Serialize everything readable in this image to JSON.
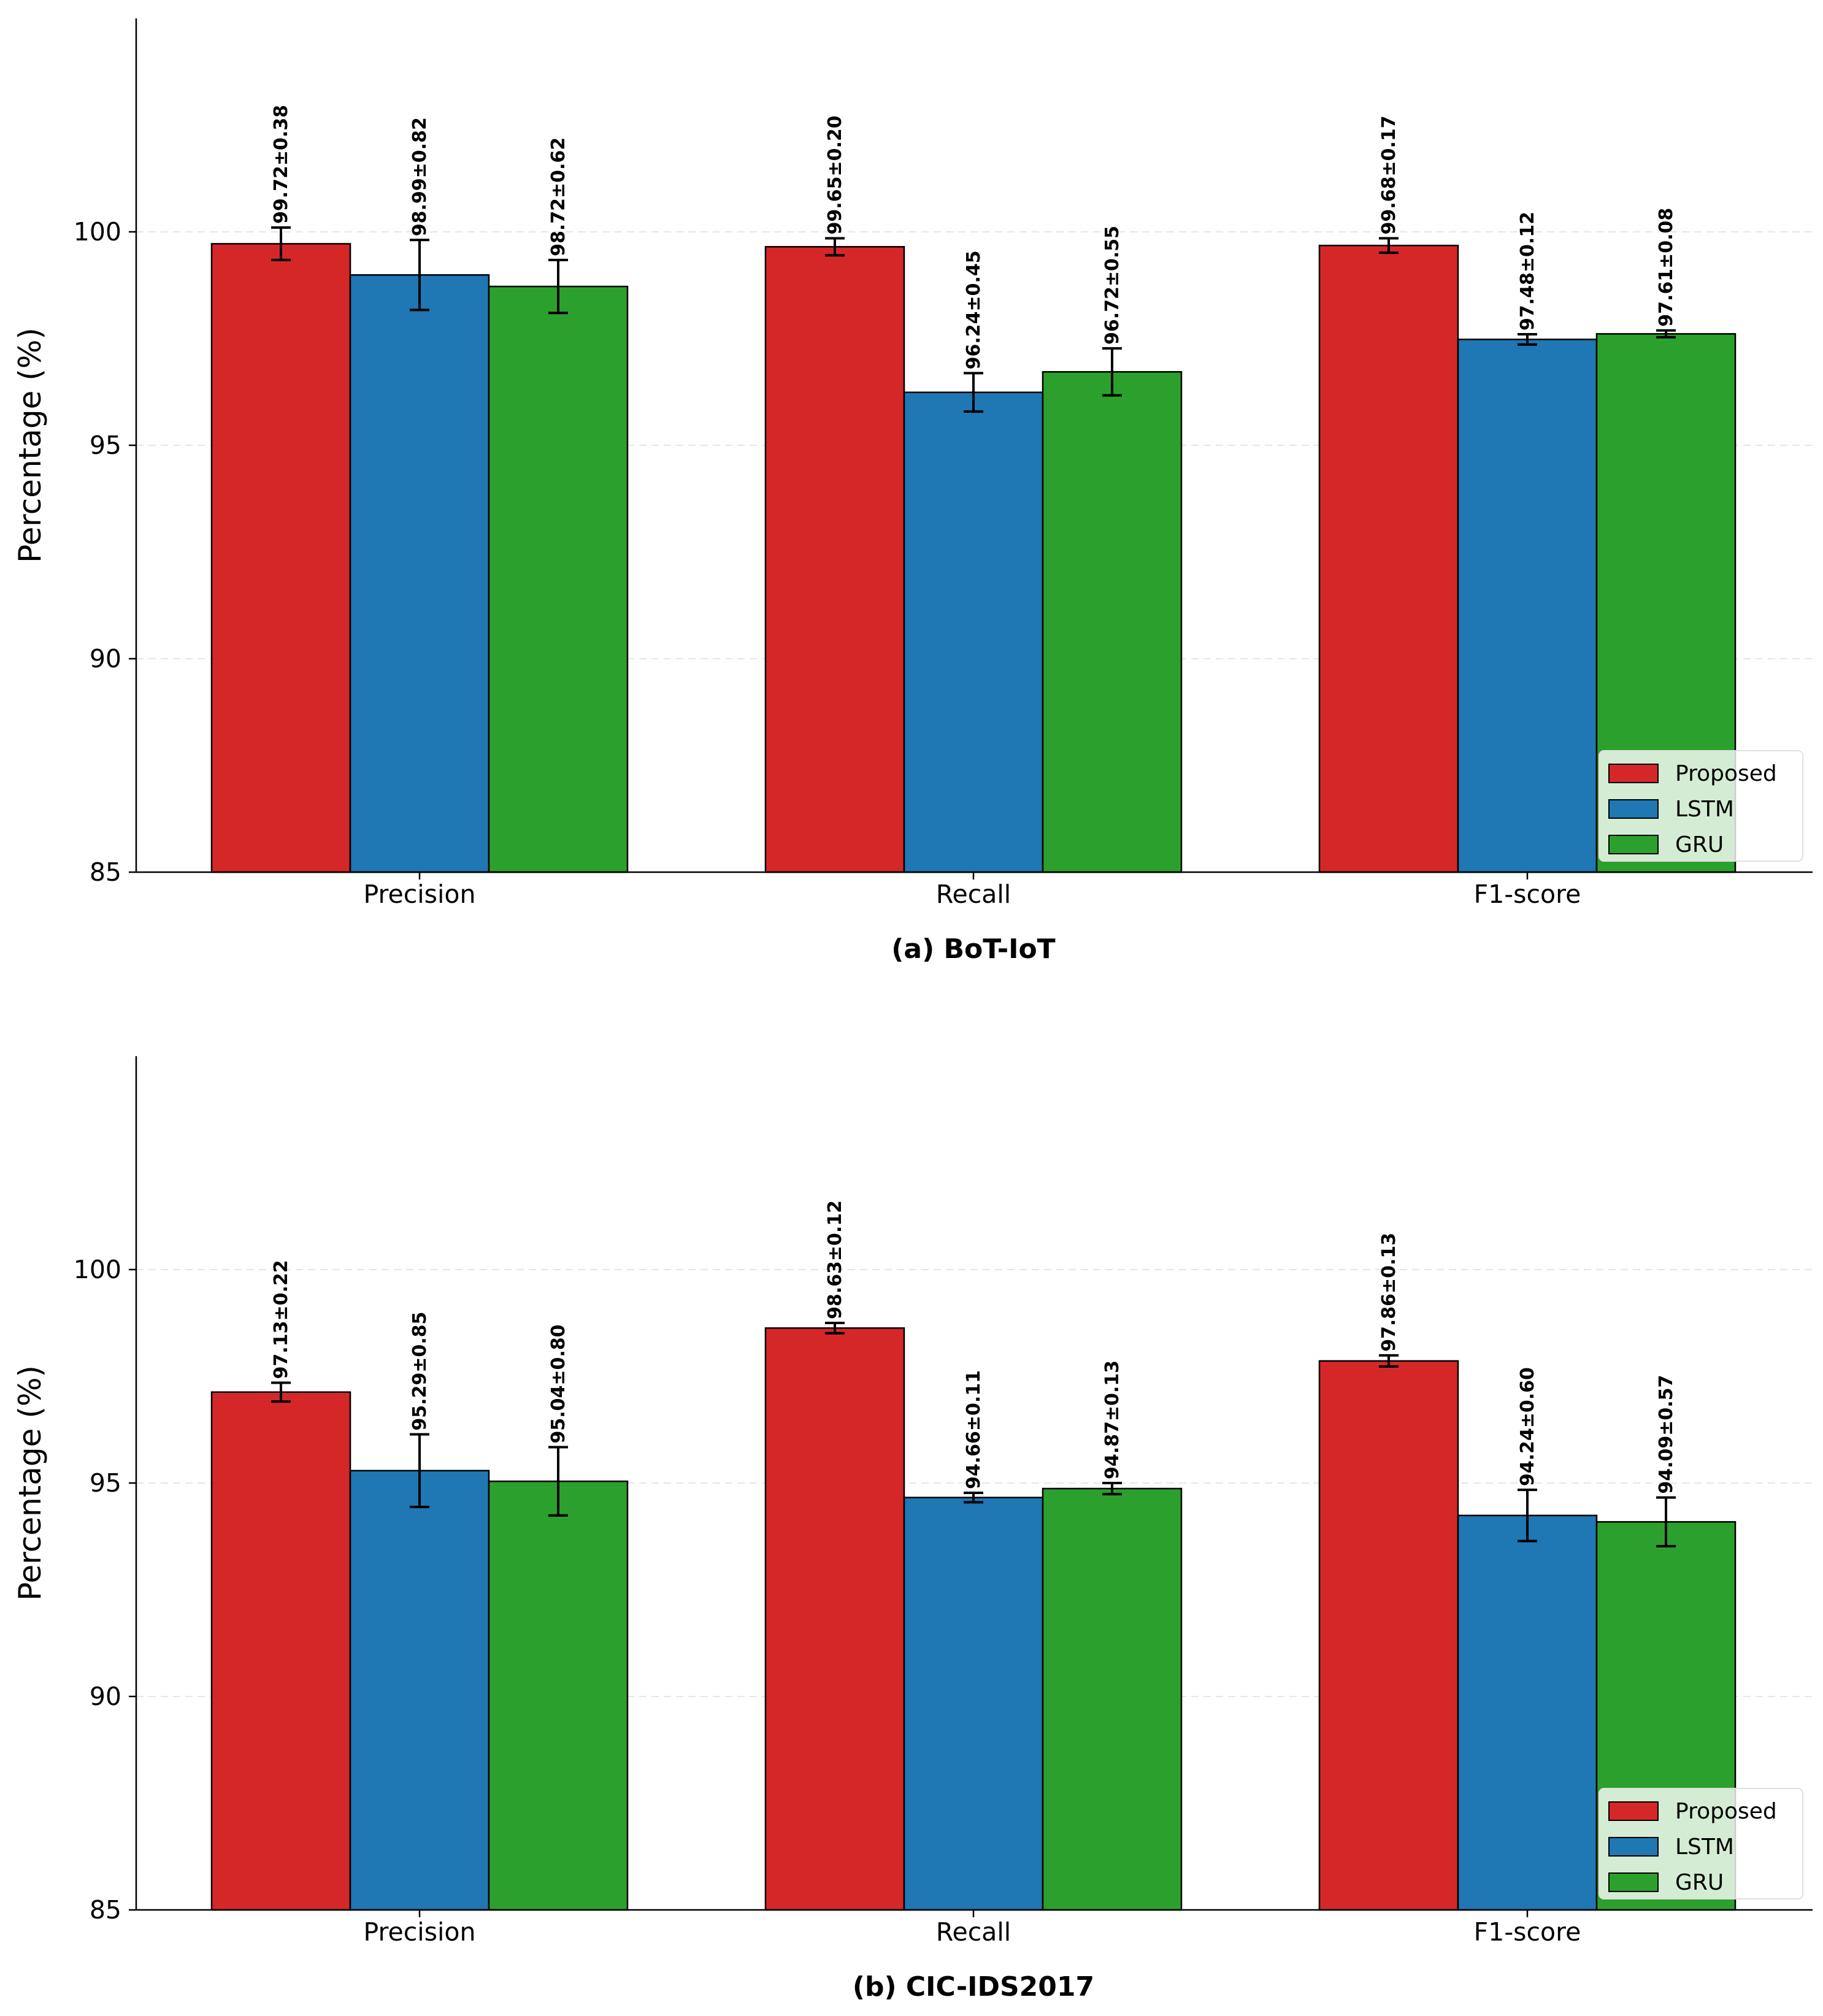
{
  "colors": {
    "Proposed": "#d62728",
    "LSTM": "#1f77b4",
    "GRU": "#2ca02c"
  },
  "chart_data": [
    {
      "type": "bar",
      "title": "(a) BoT-IoT",
      "ylabel": "Percentage (%)",
      "ylim": [
        85,
        105
      ],
      "yticks": [
        "85",
        "90",
        "95",
        "100"
      ],
      "grid": "y-dashed",
      "legend_position": "lower-right",
      "categories": [
        "Precision",
        "Recall",
        "F1-score"
      ],
      "series": [
        {
          "name": "Proposed",
          "values": [
            99.72,
            99.65,
            99.68
          ],
          "errors": [
            0.38,
            0.2,
            0.17
          ],
          "labels": [
            "99.72±0.38",
            "99.65±0.20",
            "99.68±0.17"
          ]
        },
        {
          "name": "LSTM",
          "values": [
            98.99,
            96.24,
            97.48
          ],
          "errors": [
            0.82,
            0.45,
            0.12
          ],
          "labels": [
            "98.99±0.82",
            "96.24±0.45",
            "97.48±0.12"
          ]
        },
        {
          "name": "GRU",
          "values": [
            98.72,
            96.72,
            97.61
          ],
          "errors": [
            0.62,
            0.55,
            0.08
          ],
          "labels": [
            "98.72±0.62",
            "96.72±0.55",
            "97.61±0.08"
          ]
        }
      ]
    },
    {
      "type": "bar",
      "title": "(b) CIC-IDS2017",
      "ylabel": "Percentage (%)",
      "ylim": [
        85,
        105
      ],
      "yticks": [
        "85",
        "90",
        "95",
        "100"
      ],
      "grid": "y-dashed",
      "legend_position": "lower-right",
      "categories": [
        "Precision",
        "Recall",
        "F1-score"
      ],
      "series": [
        {
          "name": "Proposed",
          "values": [
            97.13,
            98.63,
            97.86
          ],
          "errors": [
            0.22,
            0.12,
            0.13
          ],
          "labels": [
            "97.13±0.22",
            "98.63±0.12",
            "97.86±0.13"
          ]
        },
        {
          "name": "LSTM",
          "values": [
            95.29,
            94.66,
            94.24
          ],
          "errors": [
            0.85,
            0.11,
            0.6
          ],
          "labels": [
            "95.29±0.85",
            "94.66±0.11",
            "94.24±0.60"
          ]
        },
        {
          "name": "GRU",
          "values": [
            95.04,
            94.87,
            94.09
          ],
          "errors": [
            0.8,
            0.13,
            0.57
          ],
          "labels": [
            "95.04±0.80",
            "94.87±0.13",
            "94.09±0.57"
          ]
        }
      ]
    }
  ]
}
